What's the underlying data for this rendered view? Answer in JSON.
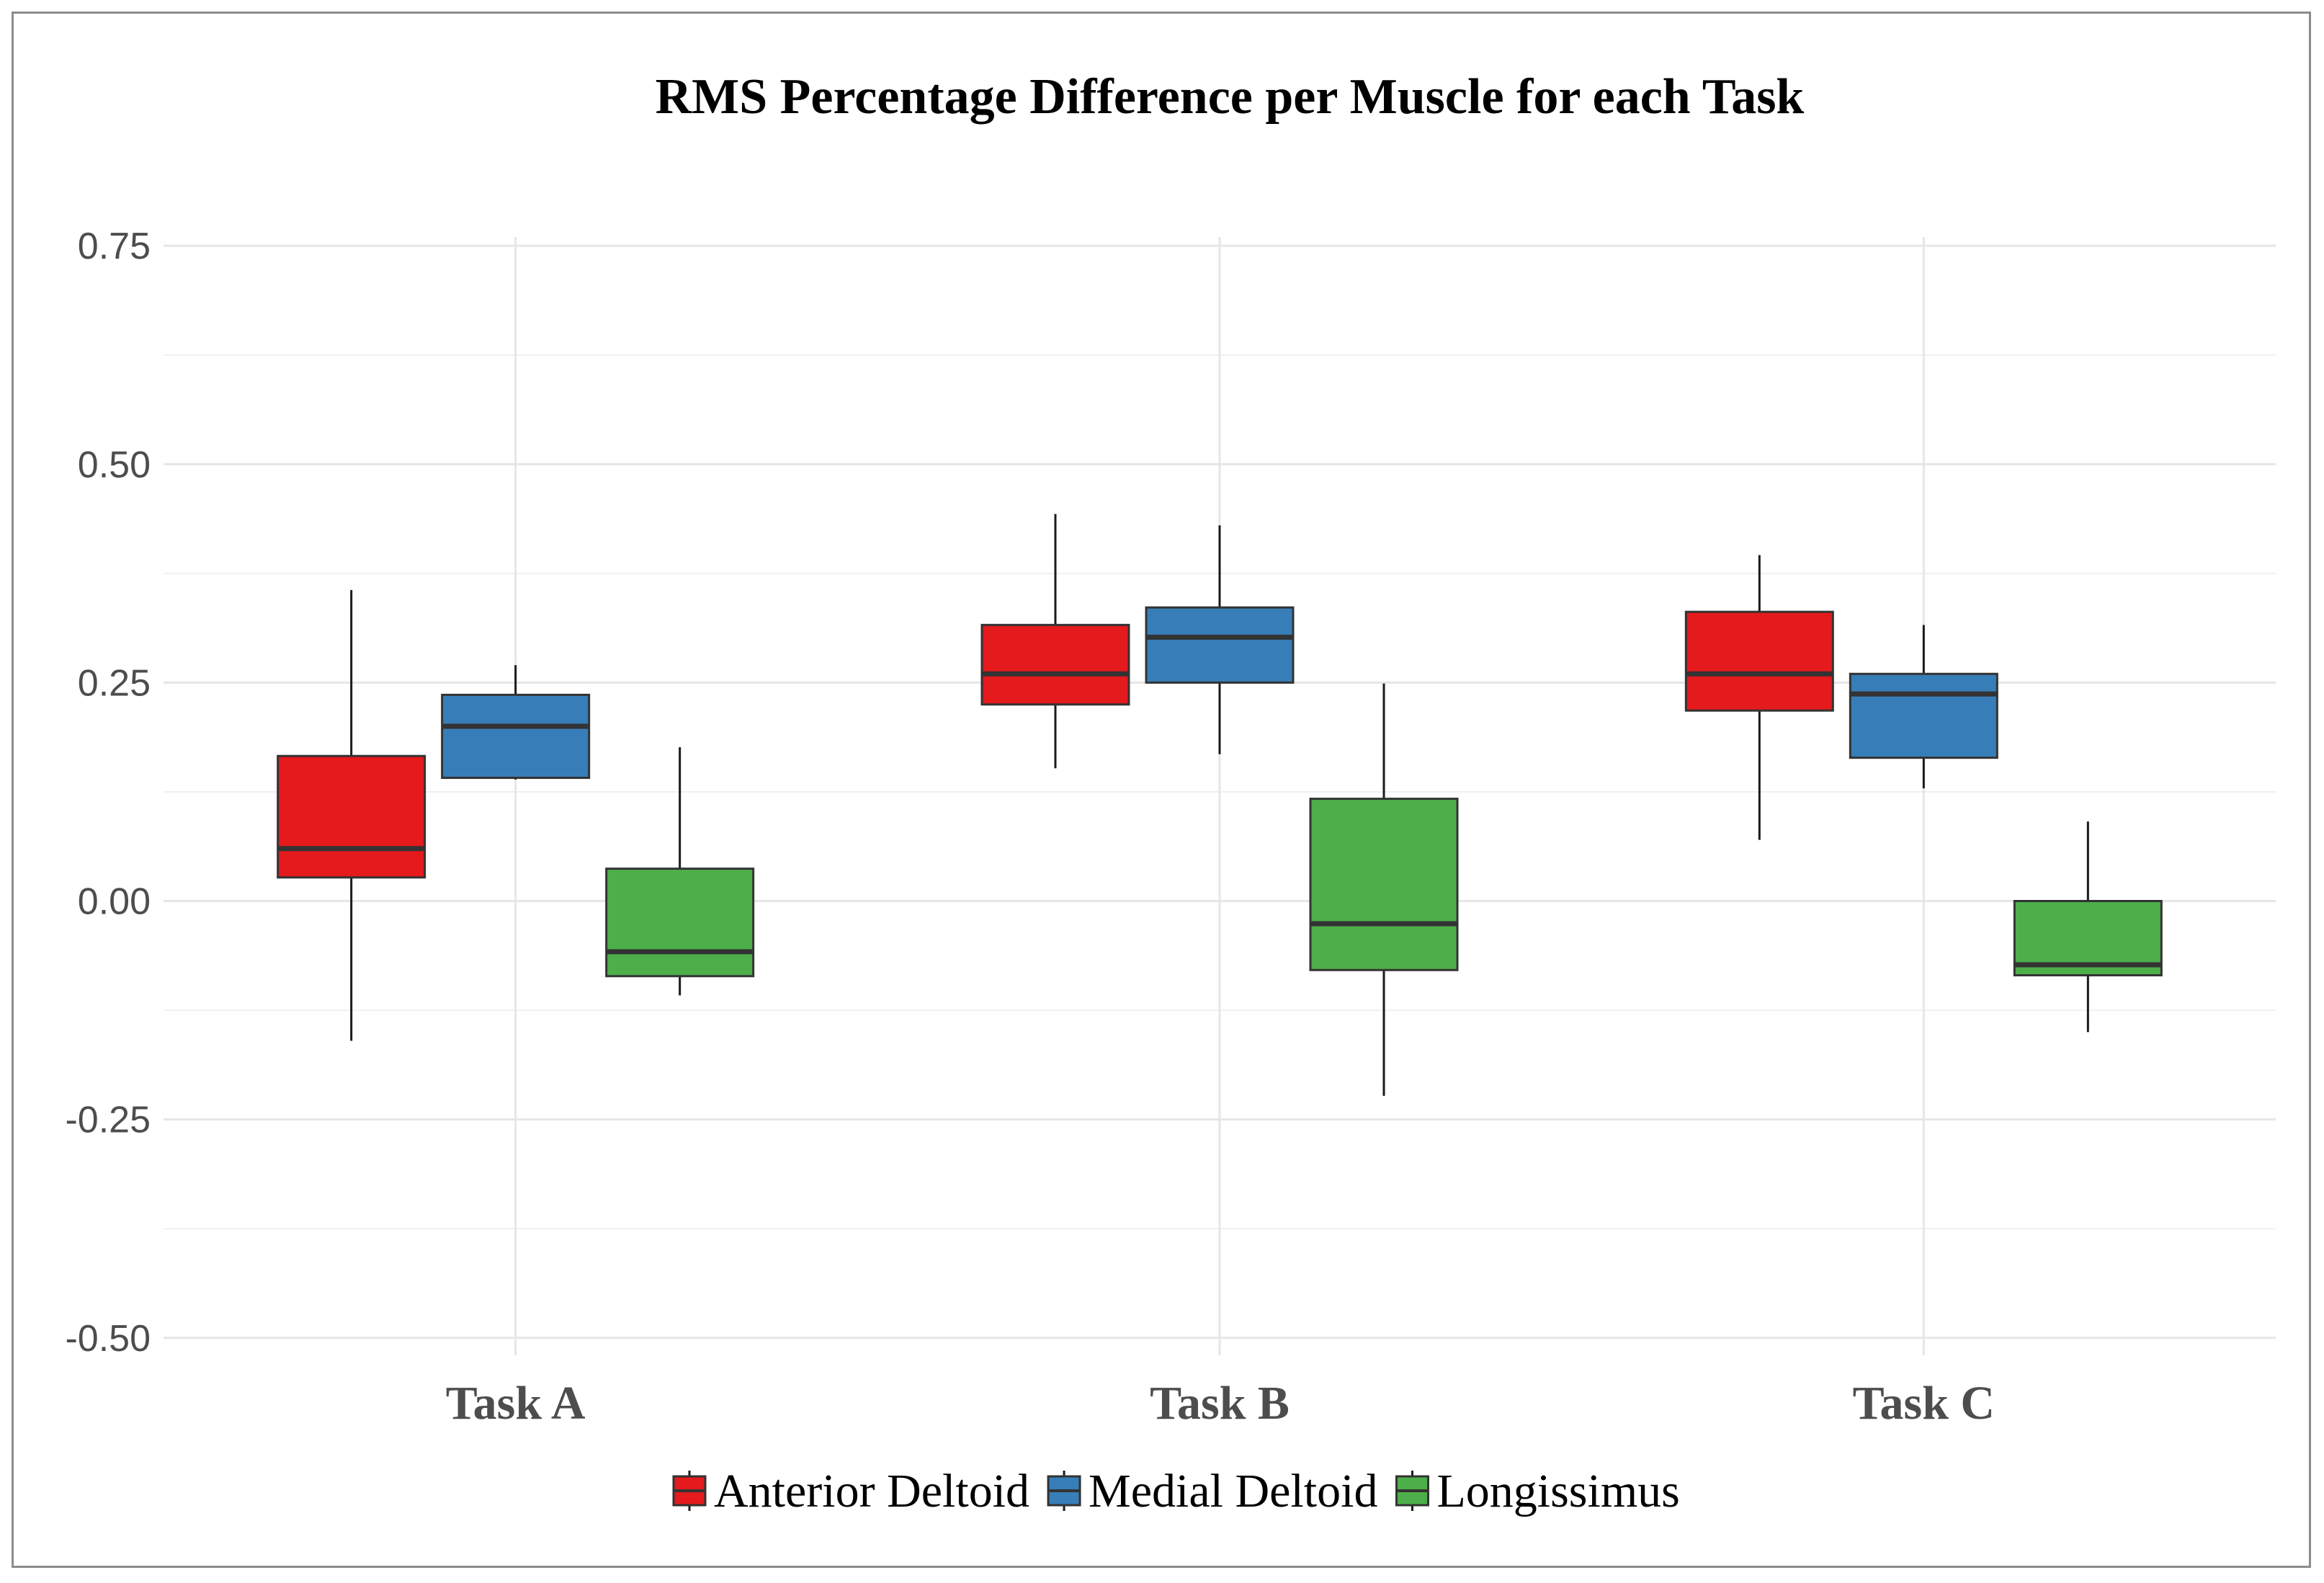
{
  "chart_data": {
    "type": "boxplot",
    "title": "RMS Percentage Difference per Muscle for each Task",
    "xlabel": "",
    "ylabel": "",
    "ylim": [
      -0.52,
      0.76
    ],
    "yticks": [
      -0.5,
      -0.25,
      0.0,
      0.25,
      0.5,
      0.75
    ],
    "ytick_labels": [
      "-0.50",
      "-0.25",
      "0.00",
      "0.25",
      "0.50",
      "0.75"
    ],
    "categories": [
      "Task A",
      "Task B",
      "Task C"
    ],
    "grid": true,
    "legend_position": "bottom",
    "series": [
      {
        "name": "Anterior Deltoid",
        "color": "#e41a1c",
        "boxes": [
          {
            "min": -0.16,
            "q1": 0.027,
            "median": 0.06,
            "q3": 0.166,
            "max": 0.356
          },
          {
            "min": 0.152,
            "q1": 0.225,
            "median": 0.26,
            "q3": 0.316,
            "max": 0.443
          },
          {
            "min": 0.07,
            "q1": 0.218,
            "median": 0.26,
            "q3": 0.331,
            "max": 0.396
          }
        ]
      },
      {
        "name": "Medial Deltoid",
        "color": "#377eb8",
        "boxes": [
          {
            "min": 0.139,
            "q1": 0.141,
            "median": 0.2,
            "q3": 0.236,
            "max": 0.27
          },
          {
            "min": 0.168,
            "q1": 0.25,
            "median": 0.302,
            "q3": 0.336,
            "max": 0.43
          },
          {
            "min": 0.129,
            "q1": 0.164,
            "median": 0.237,
            "q3": 0.26,
            "max": 0.316
          }
        ]
      },
      {
        "name": "Longissimus",
        "color": "#4daf4a",
        "boxes": [
          {
            "min": -0.108,
            "q1": -0.086,
            "median": -0.058,
            "q3": 0.037,
            "max": 0.176
          },
          {
            "min": -0.223,
            "q1": -0.079,
            "median": -0.026,
            "q3": 0.117,
            "max": 0.249
          },
          {
            "min": -0.15,
            "q1": -0.085,
            "median": -0.073,
            "q3": 0.0,
            "max": 0.091
          }
        ]
      }
    ]
  }
}
